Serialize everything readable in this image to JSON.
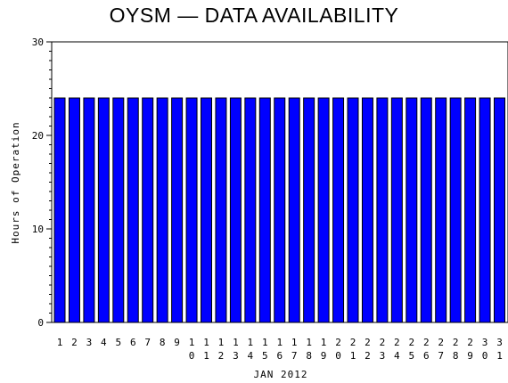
{
  "chart_data": {
    "type": "bar",
    "title": "OYSM — DATA AVAILABILITY",
    "xlabel": "JAN 2012",
    "ylabel": "Hours of Operation",
    "ylim": [
      0,
      30
    ],
    "yticks": [
      0,
      10,
      20,
      30
    ],
    "categories": [
      "1",
      "2",
      "3",
      "4",
      "5",
      "6",
      "7",
      "8",
      "9",
      "10",
      "11",
      "12",
      "13",
      "14",
      "15",
      "16",
      "17",
      "18",
      "19",
      "20",
      "21",
      "22",
      "23",
      "24",
      "25",
      "26",
      "27",
      "28",
      "29",
      "30",
      "31"
    ],
    "series": [
      {
        "values": [
          24,
          24,
          24,
          24,
          24,
          24,
          24,
          24,
          24,
          24,
          24,
          24,
          24,
          24,
          24,
          24,
          24,
          24,
          24,
          24,
          24,
          24,
          24,
          24,
          24,
          24,
          24,
          24,
          24,
          24,
          24
        ]
      }
    ],
    "bar_color": "#0000ff",
    "bar_edge_color": "#000000",
    "grid": false,
    "legend": "none"
  }
}
